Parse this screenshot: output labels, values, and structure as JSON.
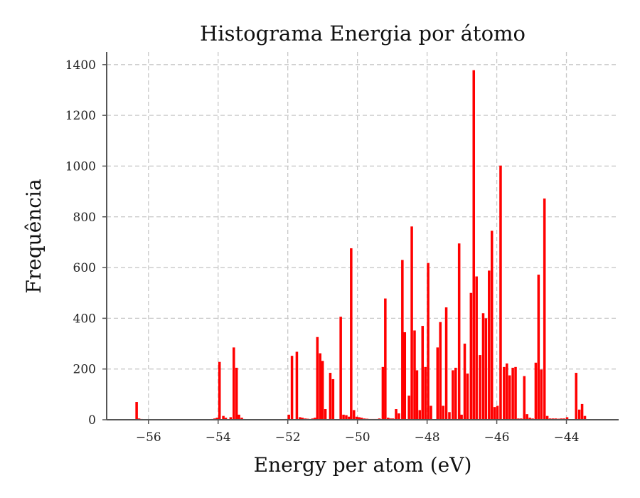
{
  "chart_data": {
    "type": "bar",
    "title": "Histograma Energia por átomo",
    "xlabel": "Energy per atom (eV)",
    "ylabel": "Frequência",
    "xlim": [
      -57.2,
      -42.5
    ],
    "ylim": [
      0,
      1450
    ],
    "xticks": [
      {
        "value": -56,
        "label": "−56"
      },
      {
        "value": -54,
        "label": "−54"
      },
      {
        "value": -52,
        "label": "−52"
      },
      {
        "value": -50,
        "label": "−50"
      },
      {
        "value": -48,
        "label": "−48"
      },
      {
        "value": -46,
        "label": "−46"
      },
      {
        "value": -44,
        "label": "−44"
      }
    ],
    "yticks": [
      {
        "value": 0,
        "label": "0"
      },
      {
        "value": 200,
        "label": "200"
      },
      {
        "value": 400,
        "label": "400"
      },
      {
        "value": 600,
        "label": "600"
      },
      {
        "value": 800,
        "label": "800"
      },
      {
        "value": 1000,
        "label": "1000"
      },
      {
        "value": 1200,
        "label": "1200"
      },
      {
        "value": 1400,
        "label": "1400"
      }
    ],
    "grid": true,
    "bar_color": "#ff0000",
    "bin_width": 0.072,
    "bins": [
      [
        -56.34,
        70
      ],
      [
        -56.27,
        5
      ],
      [
        -56.2,
        3
      ],
      [
        -56.13,
        2
      ],
      [
        -56.06,
        2
      ],
      [
        -55.99,
        2
      ],
      [
        -55.92,
        2
      ],
      [
        -55.85,
        2
      ],
      [
        -55.78,
        2
      ],
      [
        -55.71,
        2
      ],
      [
        -55.64,
        2
      ],
      [
        -55.57,
        2
      ],
      [
        -55.5,
        2
      ],
      [
        -55.43,
        2
      ],
      [
        -55.36,
        2
      ],
      [
        -55.29,
        2
      ],
      [
        -55.22,
        2
      ],
      [
        -55.15,
        2
      ],
      [
        -55.08,
        2
      ],
      [
        -55.01,
        2
      ],
      [
        -54.94,
        2
      ],
      [
        -54.87,
        2
      ],
      [
        -54.8,
        2
      ],
      [
        -54.73,
        2
      ],
      [
        -54.66,
        2
      ],
      [
        -54.59,
        2
      ],
      [
        -54.52,
        2
      ],
      [
        -54.45,
        2
      ],
      [
        -54.38,
        2
      ],
      [
        -54.31,
        2
      ],
      [
        -54.24,
        2
      ],
      [
        -54.17,
        3
      ],
      [
        -54.1,
        5
      ],
      [
        -54.03,
        8
      ],
      [
        -53.96,
        228
      ],
      [
        -53.85,
        15
      ],
      [
        -53.78,
        8
      ],
      [
        -53.64,
        10
      ],
      [
        -53.55,
        285
      ],
      [
        -53.47,
        205
      ],
      [
        -53.4,
        20
      ],
      [
        -53.32,
        8
      ],
      [
        -53.25,
        3
      ],
      [
        -53.18,
        2
      ],
      [
        -53.1,
        2
      ],
      [
        -53.03,
        2
      ],
      [
        -52.96,
        2
      ],
      [
        -52.89,
        2
      ],
      [
        -52.82,
        2
      ],
      [
        -52.75,
        2
      ],
      [
        -52.68,
        2
      ],
      [
        -52.61,
        2
      ],
      [
        -52.54,
        2
      ],
      [
        -52.47,
        2
      ],
      [
        -52.4,
        2
      ],
      [
        -52.33,
        2
      ],
      [
        -52.26,
        2
      ],
      [
        -52.19,
        2
      ],
      [
        -52.12,
        2
      ],
      [
        -52.05,
        3
      ],
      [
        -51.97,
        20
      ],
      [
        -51.88,
        252
      ],
      [
        -51.74,
        268
      ],
      [
        -51.65,
        10
      ],
      [
        -51.58,
        8
      ],
      [
        -51.5,
        5
      ],
      [
        -51.43,
        4
      ],
      [
        -51.36,
        3
      ],
      [
        -51.29,
        5
      ],
      [
        -51.22,
        8
      ],
      [
        -51.15,
        326
      ],
      [
        -51.07,
        262
      ],
      [
        -51.0,
        232
      ],
      [
        -50.92,
        42
      ],
      [
        -50.78,
        185
      ],
      [
        -50.7,
        160
      ],
      [
        -50.48,
        406
      ],
      [
        -50.4,
        20
      ],
      [
        -50.32,
        18
      ],
      [
        -50.24,
        12
      ],
      [
        -50.18,
        676
      ],
      [
        -50.1,
        38
      ],
      [
        -50.02,
        12
      ],
      [
        -49.95,
        10
      ],
      [
        -49.88,
        8
      ],
      [
        -49.8,
        5
      ],
      [
        -49.72,
        4
      ],
      [
        -49.65,
        3
      ],
      [
        -49.58,
        3
      ],
      [
        -49.51,
        3
      ],
      [
        -49.44,
        3
      ],
      [
        -49.37,
        5
      ],
      [
        -49.27,
        208
      ],
      [
        -49.2,
        478
      ],
      [
        -49.12,
        8
      ],
      [
        -49.05,
        5
      ],
      [
        -48.98,
        5
      ],
      [
        -48.89,
        42
      ],
      [
        -48.81,
        25
      ],
      [
        -48.71,
        630
      ],
      [
        -48.64,
        345
      ],
      [
        -48.52,
        95
      ],
      [
        -48.44,
        762
      ],
      [
        -48.36,
        352
      ],
      [
        -48.29,
        195
      ],
      [
        -48.21,
        38
      ],
      [
        -48.13,
        370
      ],
      [
        -48.05,
        208
      ],
      [
        -47.97,
        618
      ],
      [
        -47.89,
        55
      ],
      [
        -47.7,
        285
      ],
      [
        -47.62,
        385
      ],
      [
        -47.54,
        55
      ],
      [
        -47.45,
        443
      ],
      [
        -47.36,
        30
      ],
      [
        -47.26,
        195
      ],
      [
        -47.18,
        205
      ],
      [
        -47.08,
        695
      ],
      [
        -47.01,
        20
      ],
      [
        -46.92,
        300
      ],
      [
        -46.84,
        182
      ],
      [
        -46.74,
        500
      ],
      [
        -46.66,
        1378
      ],
      [
        -46.58,
        565
      ],
      [
        -46.48,
        255
      ],
      [
        -46.39,
        420
      ],
      [
        -46.31,
        400
      ],
      [
        -46.22,
        588
      ],
      [
        -46.14,
        745
      ],
      [
        -46.06,
        50
      ],
      [
        -45.98,
        55
      ],
      [
        -45.89,
        1002
      ],
      [
        -45.79,
        208
      ],
      [
        -45.71,
        222
      ],
      [
        -45.63,
        175
      ],
      [
        -45.54,
        205
      ],
      [
        -45.46,
        208
      ],
      [
        -45.38,
        5
      ],
      [
        -45.3,
        5
      ],
      [
        -45.21,
        172
      ],
      [
        -45.13,
        22
      ],
      [
        -45.05,
        8
      ],
      [
        -44.97,
        5
      ],
      [
        -44.88,
        225
      ],
      [
        -44.8,
        572
      ],
      [
        -44.72,
        198
      ],
      [
        -44.63,
        872
      ],
      [
        -44.55,
        15
      ],
      [
        -44.47,
        5
      ],
      [
        -44.39,
        5
      ],
      [
        -44.31,
        5
      ],
      [
        -44.23,
        4
      ],
      [
        -44.15,
        5
      ],
      [
        -44.07,
        5
      ],
      [
        -43.98,
        10
      ],
      [
        -43.72,
        185
      ],
      [
        -43.63,
        40
      ],
      [
        -43.55,
        62
      ],
      [
        -43.47,
        15
      ]
    ]
  }
}
